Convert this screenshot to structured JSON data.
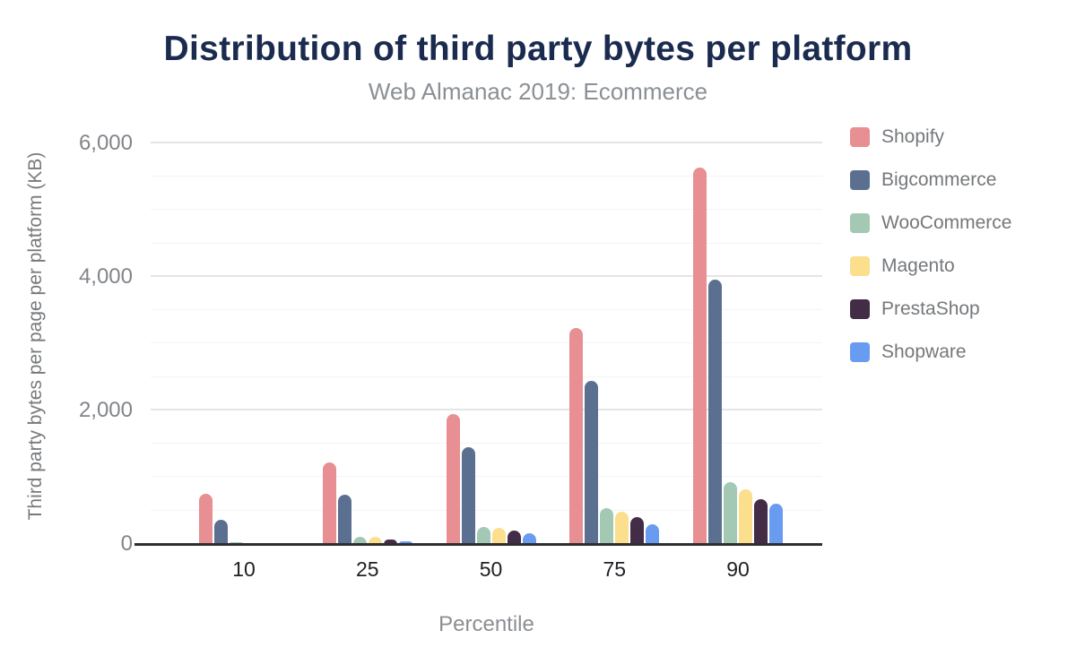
{
  "chart_data": {
    "type": "bar",
    "title": "Distribution of third party bytes per platform",
    "subtitle": "Web Almanac 2019: Ecommerce",
    "xlabel": "Percentile",
    "ylabel": "Third party bytes per page per platform (KB)",
    "categories": [
      "10",
      "25",
      "50",
      "75",
      "90"
    ],
    "series": [
      {
        "name": "Shopify",
        "color": "#e78f92",
        "values": [
          755,
          1225,
          1940,
          3235,
          5630
        ]
      },
      {
        "name": "Bigcommerce",
        "color": "#5b7090",
        "values": [
          360,
          740,
          1455,
          2440,
          3955
        ]
      },
      {
        "name": "WooCommerce",
        "color": "#a3c9b4",
        "values": [
          30,
          105,
          255,
          540,
          920
        ]
      },
      {
        "name": "Magento",
        "color": "#fbdf8d",
        "values": [
          20,
          105,
          240,
          485,
          815
        ]
      },
      {
        "name": "PrestaShop",
        "color": "#432d46",
        "values": [
          0,
          65,
          195,
          405,
          675
        ]
      },
      {
        "name": "Shopware",
        "color": "#699cf0",
        "values": [
          0,
          45,
          155,
          295,
          600
        ]
      }
    ],
    "yticks": [
      {
        "value": 0,
        "label": "0"
      },
      {
        "value": 2000,
        "label": "2,000"
      },
      {
        "value": 4000,
        "label": "4,000"
      },
      {
        "value": 6000,
        "label": "6,000"
      }
    ],
    "ylim": [
      0,
      6200
    ],
    "grid": {
      "major_every": 2000,
      "minor_every": 500,
      "max_line": 6000
    },
    "legend_position": "right",
    "colors": {
      "title": "#1a2b4f",
      "subtitle": "#8b9095",
      "axis_line": "#2e2f31",
      "tick_label": "#828589",
      "category_label": "#202124"
    }
  }
}
